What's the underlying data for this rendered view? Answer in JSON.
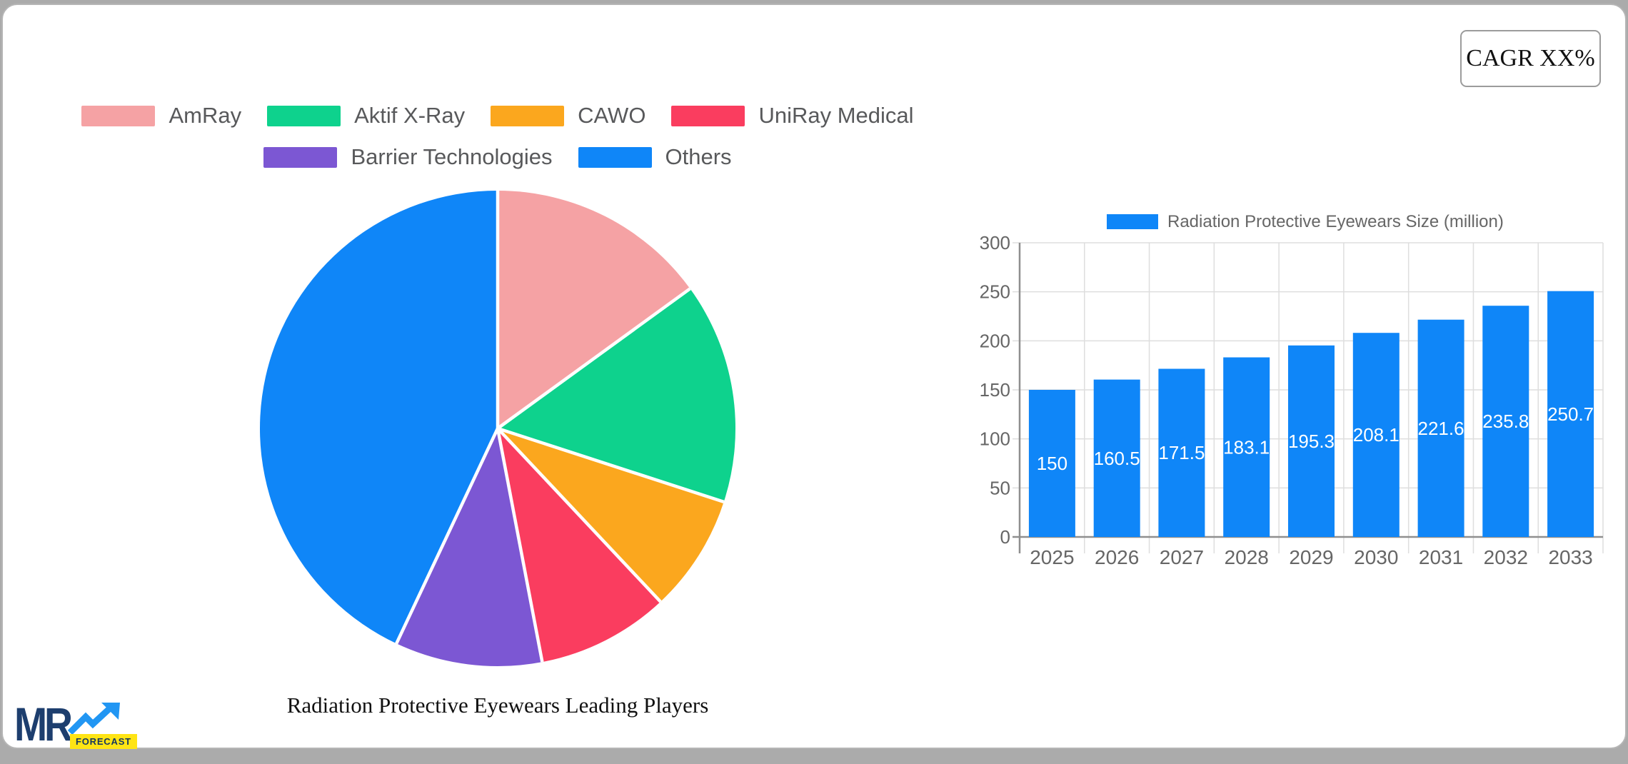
{
  "cagr": {
    "label": "CAGR XX%"
  },
  "logo": {
    "mr": "MR",
    "forecast": "FORECAST"
  },
  "chart_data": [
    {
      "type": "pie",
      "title": "Radiation Protective Eyewears Leading Players",
      "legend_position": "top",
      "start_angle_deg": -90,
      "direction": "clockwise",
      "slices": [
        {
          "label": "AmRay",
          "value_pct": 15,
          "color": "#F5A2A4"
        },
        {
          "label": "Aktif X-Ray",
          "value_pct": 15,
          "color": "#0ED28D"
        },
        {
          "label": "CAWO",
          "value_pct": 8,
          "color": "#FBA71E"
        },
        {
          "label": "UniRay Medical",
          "value_pct": 9,
          "color": "#FA3D5F"
        },
        {
          "label": "Barrier Technologies",
          "value_pct": 10,
          "color": "#7C57D3"
        },
        {
          "label": "Others",
          "value_pct": 43,
          "color": "#0F86F8"
        }
      ]
    },
    {
      "type": "bar",
      "series_label": "Radiation Protective Eyewears Size (million)",
      "legend_position": "top",
      "categories": [
        "2025",
        "2026",
        "2027",
        "2028",
        "2029",
        "2030",
        "2031",
        "2032",
        "2033"
      ],
      "values": [
        150,
        160.5,
        171.5,
        183.1,
        195.3,
        208.1,
        221.6,
        235.8,
        250.7
      ],
      "value_labels": [
        "150",
        "160.5",
        "171.5",
        "183.1",
        "195.3",
        "208.1",
        "221.6",
        "235.8",
        "250.7"
      ],
      "bar_color": "#0F86F8",
      "ylim": [
        0,
        300
      ],
      "y_ticks": [
        0,
        50,
        100,
        150,
        200,
        250,
        300
      ],
      "grid": true,
      "grid_color": "#DEDEDE",
      "axis_color": "#8F8F8F",
      "tick_text_color": "#666666"
    }
  ]
}
